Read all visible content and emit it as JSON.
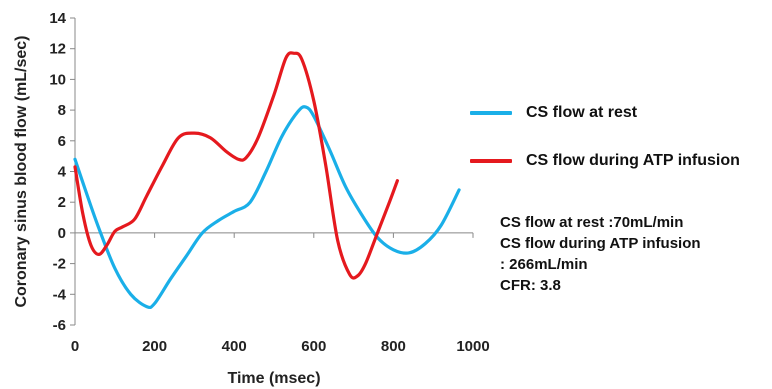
{
  "chart_data": {
    "type": "line",
    "title": "",
    "xlabel": "Time (msec)",
    "ylabel": "Coronary sinus blood flow (mL/sec)",
    "xlim": [
      0,
      1000
    ],
    "ylim": [
      -6,
      14
    ],
    "xticks": [
      0,
      200,
      400,
      600,
      800,
      1000
    ],
    "yticks": [
      -6,
      -4,
      -2,
      0,
      2,
      4,
      6,
      8,
      10,
      12,
      14
    ],
    "grid": false,
    "legend_position": "right",
    "series": [
      {
        "name": "CS flow at rest",
        "color": "#1AAFE8",
        "x": [
          0,
          30,
          60,
          100,
          140,
          180,
          200,
          240,
          280,
          320,
          360,
          400,
          440,
          480,
          520,
          560,
          580,
          600,
          640,
          680,
          720,
          760,
          800,
          840,
          880,
          920,
          965
        ],
        "y": [
          4.8,
          2.5,
          0.3,
          -2.3,
          -4.0,
          -4.8,
          -4.6,
          -3.0,
          -1.5,
          0.0,
          0.8,
          1.4,
          2.0,
          4.0,
          6.3,
          7.9,
          8.2,
          7.6,
          5.4,
          3.0,
          1.2,
          -0.3,
          -1.1,
          -1.3,
          -0.7,
          0.5,
          2.8
        ]
      },
      {
        "name": "CS flow during ATP infusion",
        "color": "#E5191E",
        "x": [
          0,
          20,
          40,
          60,
          80,
          100,
          120,
          150,
          180,
          220,
          260,
          300,
          340,
          380,
          410,
          430,
          460,
          500,
          530,
          550,
          570,
          600,
          630,
          660,
          690,
          710,
          730,
          760,
          790,
          810
        ],
        "y": [
          4.3,
          1.2,
          -0.8,
          -1.4,
          -0.8,
          0.1,
          0.4,
          0.9,
          2.4,
          4.4,
          6.2,
          6.5,
          6.2,
          5.3,
          4.8,
          4.9,
          6.2,
          9.0,
          11.4,
          11.7,
          11.3,
          8.6,
          4.4,
          -0.5,
          -2.7,
          -2.8,
          -2.0,
          0.0,
          2.0,
          3.4
        ]
      }
    ]
  },
  "annotations": [
    "CS flow at rest :70mL/min",
    "CS flow during ATP infusion",
    ": 266mL/min",
    "CFR: 3.8"
  ]
}
